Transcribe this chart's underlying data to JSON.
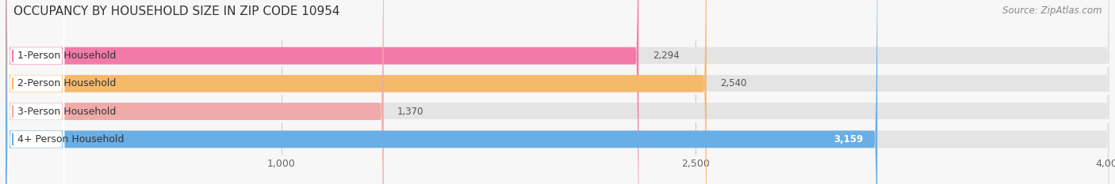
{
  "title": "OCCUPANCY BY HOUSEHOLD SIZE IN ZIP CODE 10954",
  "source": "Source: ZipAtlas.com",
  "categories": [
    "1-Person Household",
    "2-Person Household",
    "3-Person Household",
    "4+ Person Household"
  ],
  "values": [
    2294,
    2540,
    1370,
    3159
  ],
  "bar_colors": [
    "#f27aaa",
    "#f5b96a",
    "#f0aaaa",
    "#6aaee6"
  ],
  "xlim": [
    0,
    4000
  ],
  "xticks": [
    1000,
    2500,
    4000
  ],
  "bg_color": "#f7f7f7",
  "bar_bg_color": "#e4e4e4",
  "title_fontsize": 11,
  "source_fontsize": 8.5,
  "label_fontsize": 9,
  "value_fontsize": 8.5,
  "tick_fontsize": 9
}
